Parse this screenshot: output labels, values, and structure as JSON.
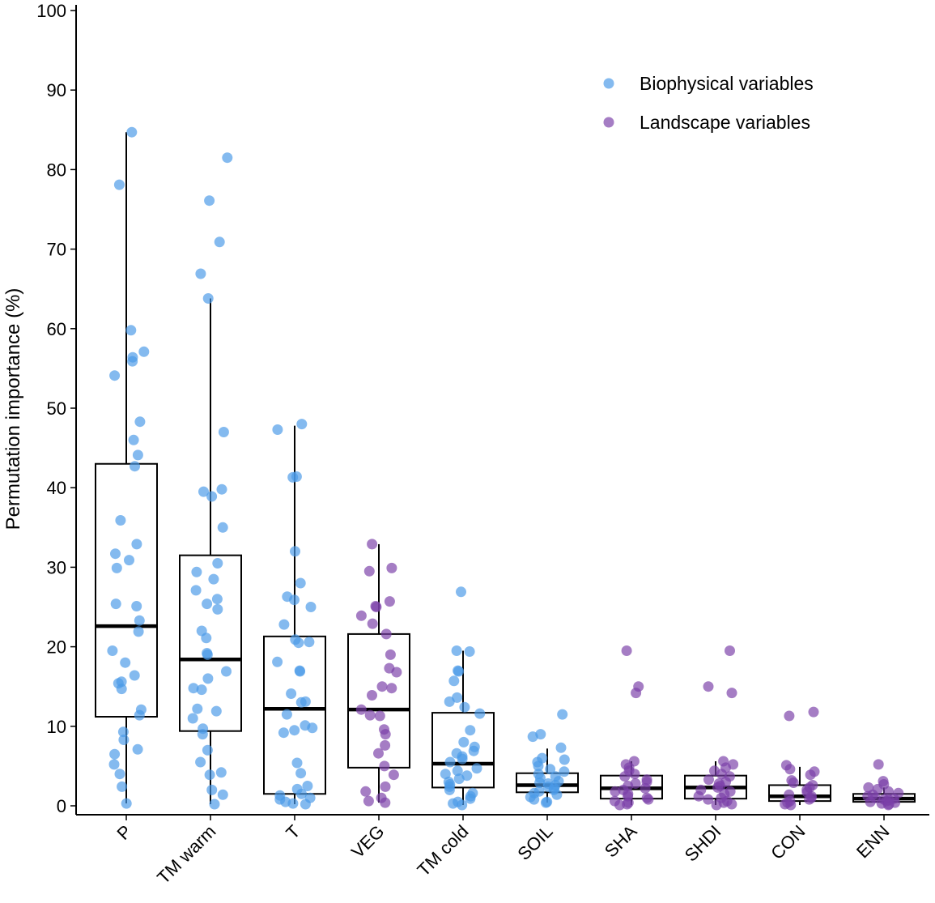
{
  "chart_data": {
    "type": "box",
    "title": "",
    "ylabel": "Permutation importance (%)",
    "xlabel": "",
    "ylim": [
      0,
      100
    ],
    "yticks": [
      0,
      10,
      20,
      30,
      40,
      50,
      60,
      70,
      80,
      90,
      100
    ],
    "grid": false,
    "legend": {
      "position": "top-right",
      "entries": [
        {
          "label": "Biophysical variables",
          "color": "#4a9ae8"
        },
        {
          "label": "Landscape variables",
          "color": "#7b3fa8"
        }
      ]
    },
    "categories": [
      {
        "label": "P",
        "group": "Biophysical variables",
        "box": {
          "whisker_low": 0.3,
          "q1": 11.2,
          "median": 22.6,
          "q3": 43.0,
          "whisker_high": 84.7
        },
        "points": [
          84.7,
          78.1,
          59.8,
          57.1,
          56.4,
          55.9,
          54.1,
          48.3,
          46.0,
          44.1,
          42.7,
          35.9,
          32.9,
          31.7,
          30.9,
          29.9,
          25.4,
          25.1,
          23.3,
          21.9,
          19.5,
          18.0,
          16.4,
          15.6,
          15.4,
          14.7,
          12.1,
          11.4,
          9.3,
          8.3,
          7.1,
          6.5,
          5.2,
          4.0,
          2.4,
          0.3
        ]
      },
      {
        "label": "TM warm",
        "group": "Biophysical variables",
        "box": {
          "whisker_low": 0.2,
          "q1": 9.4,
          "median": 18.4,
          "q3": 31.5,
          "whisker_high": 63.8
        },
        "points": [
          81.5,
          76.1,
          70.9,
          66.9,
          63.8,
          47.0,
          39.8,
          39.5,
          38.9,
          35.0,
          30.5,
          29.4,
          28.5,
          27.1,
          26.0,
          25.4,
          24.7,
          22.0,
          21.1,
          19.2,
          19.0,
          16.9,
          16.0,
          14.8,
          14.6,
          12.2,
          11.9,
          11.0,
          9.7,
          9.0,
          7.0,
          5.5,
          4.2,
          3.9,
          2.0,
          1.4,
          0.2
        ]
      },
      {
        "label": "T",
        "group": "Biophysical variables",
        "box": {
          "whisker_low": 0.2,
          "q1": 1.5,
          "median": 12.2,
          "q3": 21.3,
          "whisker_high": 47.8
        },
        "points": [
          48.0,
          47.3,
          41.4,
          41.3,
          32.0,
          28.0,
          26.3,
          25.9,
          25.0,
          22.8,
          20.9,
          20.6,
          20.5,
          18.1,
          17.0,
          16.9,
          14.1,
          13.1,
          13.0,
          11.5,
          10.1,
          9.8,
          9.5,
          9.2,
          5.4,
          4.1,
          2.5,
          2.1,
          1.5,
          1.3,
          1.0,
          0.8,
          0.5,
          0.3,
          0.2
        ]
      },
      {
        "label": "VEG",
        "group": "Landscape variables",
        "box": {
          "whisker_low": 0.4,
          "q1": 4.8,
          "median": 12.1,
          "q3": 21.6,
          "whisker_high": 32.9
        },
        "points": [
          32.9,
          29.9,
          29.5,
          25.7,
          25.1,
          25.0,
          23.9,
          22.9,
          21.6,
          19.0,
          17.3,
          16.8,
          15.0,
          14.8,
          13.9,
          12.1,
          11.4,
          11.3,
          9.6,
          9.0,
          7.6,
          6.6,
          5.0,
          3.9,
          2.4,
          1.8,
          1.0,
          0.6,
          0.4
        ]
      },
      {
        "label": "TM cold",
        "group": "Biophysical variables",
        "box": {
          "whisker_low": 0.1,
          "q1": 2.3,
          "median": 5.3,
          "q3": 11.7,
          "whisker_high": 19.5
        },
        "points": [
          26.9,
          19.5,
          19.4,
          17.0,
          16.9,
          15.7,
          13.6,
          13.1,
          12.4,
          11.6,
          9.5,
          8.0,
          7.4,
          6.9,
          6.6,
          6.2,
          5.9,
          5.5,
          4.7,
          4.4,
          4.0,
          3.8,
          3.4,
          3.0,
          2.7,
          2.4,
          2.0,
          1.6,
          1.2,
          0.9,
          0.5,
          0.3,
          0.1
        ]
      },
      {
        "label": "SOIL",
        "group": "Biophysical variables",
        "box": {
          "whisker_low": 0.4,
          "q1": 1.7,
          "median": 2.6,
          "q3": 4.1,
          "whisker_high": 7.2
        },
        "points": [
          11.5,
          9.0,
          8.7,
          7.3,
          6.0,
          5.8,
          5.5,
          5.0,
          4.6,
          4.3,
          4.0,
          3.7,
          3.5,
          3.1,
          2.9,
          2.8,
          2.6,
          2.4,
          2.2,
          2.0,
          1.8,
          1.6,
          1.4,
          1.1,
          0.8,
          0.5,
          0.4
        ]
      },
      {
        "label": "SHA",
        "group": "Landscape variables",
        "box": {
          "whisker_low": 0.1,
          "q1": 0.9,
          "median": 2.2,
          "q3": 3.8,
          "whisker_high": 5.6
        },
        "points": [
          19.5,
          15.0,
          14.2,
          5.6,
          5.2,
          4.8,
          4.4,
          4.0,
          3.7,
          3.3,
          3.0,
          2.8,
          2.5,
          2.2,
          2.0,
          1.8,
          1.5,
          1.2,
          1.0,
          0.8,
          0.6,
          0.4,
          0.2,
          0.1
        ]
      },
      {
        "label": "SHDI",
        "group": "Landscape variables",
        "box": {
          "whisker_low": 0.1,
          "q1": 0.9,
          "median": 2.3,
          "q3": 3.8,
          "whisker_high": 5.6
        },
        "points": [
          19.5,
          15.0,
          14.2,
          5.6,
          5.2,
          4.8,
          4.4,
          4.0,
          3.7,
          3.3,
          3.0,
          2.8,
          2.5,
          2.3,
          2.0,
          1.8,
          1.5,
          1.2,
          1.0,
          0.8,
          0.6,
          0.4,
          0.2,
          0.1
        ]
      },
      {
        "label": "CON",
        "group": "Landscape variables",
        "box": {
          "whisker_low": 0.1,
          "q1": 0.6,
          "median": 1.2,
          "q3": 2.6,
          "whisker_high": 4.9
        },
        "points": [
          11.8,
          11.3,
          5.1,
          4.6,
          4.3,
          3.9,
          3.2,
          2.9,
          2.6,
          2.3,
          2.0,
          1.7,
          1.4,
          1.2,
          1.0,
          0.8,
          0.6,
          0.4,
          0.2,
          0.1
        ]
      },
      {
        "label": "ENN",
        "group": "Landscape variables",
        "box": {
          "whisker_low": 0.1,
          "q1": 0.5,
          "median": 0.9,
          "q3": 1.5,
          "whisker_high": 2.3
        },
        "points": [
          5.2,
          3.1,
          2.7,
          2.3,
          2.1,
          1.8,
          1.6,
          1.4,
          1.2,
          1.0,
          0.9,
          0.8,
          0.7,
          0.6,
          0.5,
          0.4,
          0.3,
          0.2,
          0.1
        ]
      }
    ]
  }
}
